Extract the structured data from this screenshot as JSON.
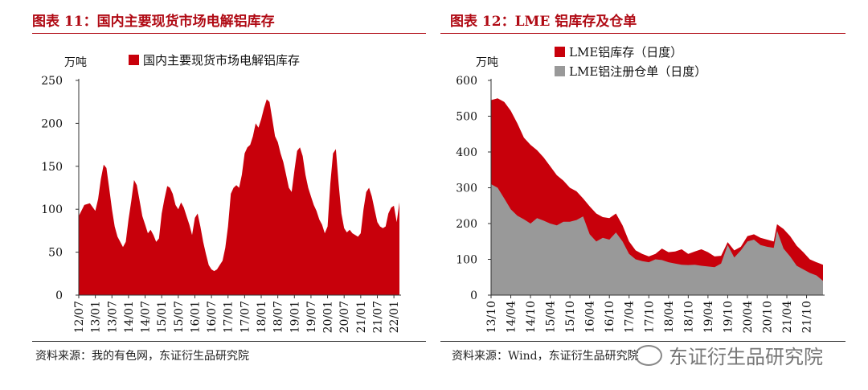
{
  "left": {
    "title": "图表 11：国内主要现货市场电解铝库存",
    "source": "资料来源：我的有色网，东证衍生品研究院"
  },
  "right": {
    "title": "图表 12：LME 铝库存及仓单",
    "source": "资料来源：Wind，东证衍生品研究院"
  },
  "watermark": "东证衍生品研究院",
  "colors": {
    "red": "#c8000b",
    "gray": "#999999",
    "accent": "#b00a14"
  },
  "chart_data": [
    {
      "type": "area",
      "unit": "万吨",
      "legend": [
        "国内主要现货市场电解铝库存"
      ],
      "legend_placement": "top",
      "ylim": [
        0,
        250
      ],
      "yticks": [
        0,
        50,
        100,
        150,
        200,
        250
      ],
      "xlim": [
        "2012-07",
        "2022-03"
      ],
      "xticks": [
        "12/07",
        "13/01",
        "13/07",
        "14/01",
        "14/07",
        "15/01",
        "15/07",
        "16/01",
        "16/07",
        "17/01",
        "17/07",
        "18/01",
        "18/07",
        "19/01",
        "19/07",
        "20/01",
        "20/07",
        "21/01",
        "21/07",
        "22/01"
      ],
      "series": [
        {
          "name": "国内主要现货市场电解铝库存",
          "color": "#c8000b",
          "points": [
            [
              "2012-07",
              92
            ],
            [
              "2012-09",
              105
            ],
            [
              "2012-11",
              107
            ],
            [
              "2013-01",
              98
            ],
            [
              "2013-02",
              112
            ],
            [
              "2013-03",
              135
            ],
            [
              "2013-04",
              152
            ],
            [
              "2013-05",
              148
            ],
            [
              "2013-06",
              125
            ],
            [
              "2013-07",
              100
            ],
            [
              "2013-08",
              80
            ],
            [
              "2013-09",
              68
            ],
            [
              "2013-10",
              62
            ],
            [
              "2013-11",
              56
            ],
            [
              "2013-12",
              62
            ],
            [
              "2014-01",
              88
            ],
            [
              "2014-02",
              110
            ],
            [
              "2014-03",
              134
            ],
            [
              "2014-04",
              128
            ],
            [
              "2014-05",
              110
            ],
            [
              "2014-06",
              92
            ],
            [
              "2014-07",
              82
            ],
            [
              "2014-08",
              72
            ],
            [
              "2014-09",
              76
            ],
            [
              "2014-10",
              70
            ],
            [
              "2014-11",
              62
            ],
            [
              "2014-12",
              66
            ],
            [
              "2015-01",
              95
            ],
            [
              "2015-02",
              112
            ],
            [
              "2015-03",
              127
            ],
            [
              "2015-04",
              125
            ],
            [
              "2015-05",
              118
            ],
            [
              "2015-06",
              105
            ],
            [
              "2015-07",
              100
            ],
            [
              "2015-08",
              108
            ],
            [
              "2015-09",
              102
            ],
            [
              "2015-10",
              92
            ],
            [
              "2015-11",
              82
            ],
            [
              "2015-12",
              70
            ],
            [
              "2016-01",
              90
            ],
            [
              "2016-02",
              95
            ],
            [
              "2016-03",
              80
            ],
            [
              "2016-04",
              62
            ],
            [
              "2016-05",
              48
            ],
            [
              "2016-06",
              35
            ],
            [
              "2016-07",
              30
            ],
            [
              "2016-08",
              28
            ],
            [
              "2016-09",
              30
            ],
            [
              "2016-10",
              35
            ],
            [
              "2016-11",
              40
            ],
            [
              "2016-12",
              55
            ],
            [
              "2017-01",
              80
            ],
            [
              "2017-02",
              118
            ],
            [
              "2017-03",
              125
            ],
            [
              "2017-04",
              128
            ],
            [
              "2017-05",
              125
            ],
            [
              "2017-06",
              140
            ],
            [
              "2017-07",
              165
            ],
            [
              "2017-08",
              172
            ],
            [
              "2017-09",
              175
            ],
            [
              "2017-10",
              185
            ],
            [
              "2017-11",
              200
            ],
            [
              "2017-12",
              195
            ],
            [
              "2018-01",
              205
            ],
            [
              "2018-02",
              218
            ],
            [
              "2018-03",
              228
            ],
            [
              "2018-04",
              225
            ],
            [
              "2018-05",
              205
            ],
            [
              "2018-06",
              185
            ],
            [
              "2018-07",
              178
            ],
            [
              "2018-08",
              165
            ],
            [
              "2018-09",
              155
            ],
            [
              "2018-10",
              140
            ],
            [
              "2018-11",
              125
            ],
            [
              "2018-12",
              120
            ],
            [
              "2019-01",
              145
            ],
            [
              "2019-02",
              168
            ],
            [
              "2019-03",
              172
            ],
            [
              "2019-04",
              162
            ],
            [
              "2019-05",
              140
            ],
            [
              "2019-06",
              125
            ],
            [
              "2019-07",
              115
            ],
            [
              "2019-08",
              105
            ],
            [
              "2019-09",
              98
            ],
            [
              "2019-10",
              88
            ],
            [
              "2019-11",
              82
            ],
            [
              "2019-12",
              72
            ],
            [
              "2020-01",
              80
            ],
            [
              "2020-02",
              130
            ],
            [
              "2020-03",
              165
            ],
            [
              "2020-04",
              170
            ],
            [
              "2020-05",
              130
            ],
            [
              "2020-06",
              95
            ],
            [
              "2020-07",
              78
            ],
            [
              "2020-08",
              73
            ],
            [
              "2020-09",
              76
            ],
            [
              "2020-10",
              72
            ],
            [
              "2020-11",
              70
            ],
            [
              "2020-12",
              68
            ],
            [
              "2021-01",
              72
            ],
            [
              "2021-02",
              100
            ],
            [
              "2021-03",
              120
            ],
            [
              "2021-04",
              125
            ],
            [
              "2021-05",
              115
            ],
            [
              "2021-06",
              100
            ],
            [
              "2021-07",
              85
            ],
            [
              "2021-08",
              80
            ],
            [
              "2021-09",
              78
            ],
            [
              "2021-10",
              80
            ],
            [
              "2021-11",
              95
            ],
            [
              "2021-12",
              102
            ],
            [
              "2022-01",
              104
            ],
            [
              "2022-02",
              85
            ],
            [
              "2022-03",
              108
            ]
          ]
        }
      ]
    },
    {
      "type": "area",
      "unit": "万吨",
      "legend": [
        "LME铝库存（日度）",
        "LME铝注册仓单（日度）"
      ],
      "legend_placement": "top",
      "ylim": [
        0,
        600
      ],
      "yticks": [
        0,
        100,
        200,
        300,
        400,
        500,
        600
      ],
      "xlim": [
        "2013-10",
        "2022-03"
      ],
      "xticks": [
        "13/10",
        "14/04",
        "14/10",
        "15/04",
        "15/10",
        "16/04",
        "16/10",
        "17/04",
        "17/10",
        "18/04",
        "18/10",
        "19/04",
        "19/10",
        "20/04",
        "20/10",
        "21/04",
        "21/10"
      ],
      "series": [
        {
          "name": "LME铝库存（日度）",
          "color": "#c8000b",
          "points": [
            [
              "2013-10",
              545
            ],
            [
              "2013-12",
              550
            ],
            [
              "2014-02",
              540
            ],
            [
              "2014-04",
              515
            ],
            [
              "2014-06",
              480
            ],
            [
              "2014-08",
              440
            ],
            [
              "2014-10",
              420
            ],
            [
              "2014-12",
              405
            ],
            [
              "2015-02",
              385
            ],
            [
              "2015-04",
              360
            ],
            [
              "2015-06",
              335
            ],
            [
              "2015-08",
              320
            ],
            [
              "2015-10",
              300
            ],
            [
              "2015-12",
              290
            ],
            [
              "2016-02",
              270
            ],
            [
              "2016-04",
              248
            ],
            [
              "2016-06",
              228
            ],
            [
              "2016-08",
              218
            ],
            [
              "2016-10",
              215
            ],
            [
              "2016-12",
              228
            ],
            [
              "2017-02",
              195
            ],
            [
              "2017-04",
              150
            ],
            [
              "2017-06",
              125
            ],
            [
              "2017-08",
              115
            ],
            [
              "2017-10",
              108
            ],
            [
              "2017-12",
              115
            ],
            [
              "2018-02",
              130
            ],
            [
              "2018-04",
              120
            ],
            [
              "2018-06",
              122
            ],
            [
              "2018-08",
              128
            ],
            [
              "2018-10",
              115
            ],
            [
              "2018-12",
              122
            ],
            [
              "2019-02",
              128
            ],
            [
              "2019-04",
              120
            ],
            [
              "2019-06",
              108
            ],
            [
              "2019-08",
              110
            ],
            [
              "2019-10",
              148
            ],
            [
              "2019-12",
              125
            ],
            [
              "2020-02",
              135
            ],
            [
              "2020-04",
              165
            ],
            [
              "2020-06",
              170
            ],
            [
              "2020-08",
              160
            ],
            [
              "2020-10",
              155
            ],
            [
              "2020-12",
              150
            ],
            [
              "2021-01",
              198
            ],
            [
              "2021-03",
              185
            ],
            [
              "2021-05",
              165
            ],
            [
              "2021-07",
              138
            ],
            [
              "2021-09",
              120
            ],
            [
              "2021-11",
              100
            ],
            [
              "2022-01",
              92
            ],
            [
              "2022-03",
              85
            ]
          ]
        },
        {
          "name": "LME铝注册仓单（日度）",
          "color": "#999999",
          "points": [
            [
              "2013-10",
              310
            ],
            [
              "2013-12",
              300
            ],
            [
              "2014-02",
              270
            ],
            [
              "2014-04",
              240
            ],
            [
              "2014-06",
              222
            ],
            [
              "2014-08",
              212
            ],
            [
              "2014-10",
              200
            ],
            [
              "2014-12",
              215
            ],
            [
              "2015-02",
              208
            ],
            [
              "2015-04",
              200
            ],
            [
              "2015-06",
              195
            ],
            [
              "2015-08",
              205
            ],
            [
              "2015-10",
              205
            ],
            [
              "2015-12",
              210
            ],
            [
              "2016-02",
              220
            ],
            [
              "2016-04",
              170
            ],
            [
              "2016-06",
              150
            ],
            [
              "2016-08",
              160
            ],
            [
              "2016-10",
              155
            ],
            [
              "2016-12",
              175
            ],
            [
              "2017-02",
              150
            ],
            [
              "2017-04",
              115
            ],
            [
              "2017-06",
              100
            ],
            [
              "2017-08",
              95
            ],
            [
              "2017-10",
              92
            ],
            [
              "2017-12",
              100
            ],
            [
              "2018-02",
              98
            ],
            [
              "2018-04",
              92
            ],
            [
              "2018-06",
              88
            ],
            [
              "2018-08",
              85
            ],
            [
              "2018-10",
              84
            ],
            [
              "2018-12",
              85
            ],
            [
              "2019-02",
              82
            ],
            [
              "2019-04",
              80
            ],
            [
              "2019-06",
              78
            ],
            [
              "2019-08",
              88
            ],
            [
              "2019-10",
              140
            ],
            [
              "2019-12",
              105
            ],
            [
              "2020-02",
              125
            ],
            [
              "2020-04",
              150
            ],
            [
              "2020-06",
              155
            ],
            [
              "2020-08",
              140
            ],
            [
              "2020-10",
              135
            ],
            [
              "2020-12",
              132
            ],
            [
              "2021-01",
              180
            ],
            [
              "2021-03",
              130
            ],
            [
              "2021-05",
              108
            ],
            [
              "2021-07",
              82
            ],
            [
              "2021-09",
              72
            ],
            [
              "2021-11",
              62
            ],
            [
              "2022-01",
              55
            ],
            [
              "2022-03",
              40
            ]
          ]
        }
      ]
    }
  ]
}
